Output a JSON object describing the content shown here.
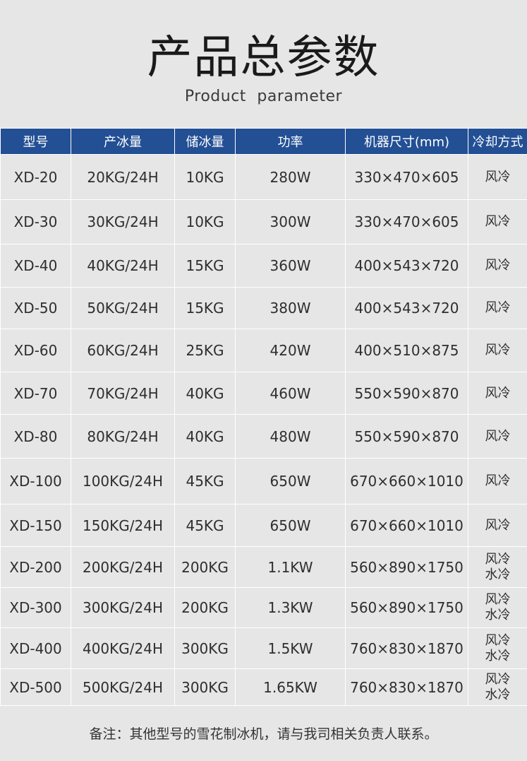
{
  "title": "产品总参数",
  "subtitle": "Product parameter",
  "headers": [
    "型号",
    "产冰量",
    "储冰量",
    "功率",
    "机器尺寸(mm)",
    "冷却方式"
  ],
  "rows": [
    {
      "model": "XD-20",
      "output": "20KG/24H",
      "storage": "10KG",
      "power": "280W",
      "size": "330×470×605",
      "cooling": [
        "风冷"
      ]
    },
    {
      "model": "XD-30",
      "output": "30KG/24H",
      "storage": "10KG",
      "power": "300W",
      "size": "330×470×605",
      "cooling": [
        "风冷"
      ]
    },
    {
      "model": "XD-40",
      "output": "40KG/24H",
      "storage": "15KG",
      "power": "360W",
      "size": "400×543×720",
      "cooling": [
        "风冷"
      ]
    },
    {
      "model": "XD-50",
      "output": "50KG/24H",
      "storage": "15KG",
      "power": "380W",
      "size": "400×543×720",
      "cooling": [
        "风冷"
      ]
    },
    {
      "model": "XD-60",
      "output": "60KG/24H",
      "storage": "25KG",
      "power": "420W",
      "size": "400×510×875",
      "cooling": [
        "风冷"
      ]
    },
    {
      "model": "XD-70",
      "output": "70KG/24H",
      "storage": "40KG",
      "power": "460W",
      "size": "550×590×870",
      "cooling": [
        "风冷"
      ]
    },
    {
      "model": "XD-80",
      "output": "80KG/24H",
      "storage": "40KG",
      "power": "480W",
      "size": "550×590×870",
      "cooling": [
        "风冷"
      ]
    },
    {
      "model": "XD-100",
      "output": "100KG/24H",
      "storage": "45KG",
      "power": "650W",
      "size": "670×660×1010",
      "cooling": [
        "风冷"
      ]
    },
    {
      "model": "XD-150",
      "output": "150KG/24H",
      "storage": "45KG",
      "power": "650W",
      "size": "670×660×1010",
      "cooling": [
        "风冷"
      ]
    },
    {
      "model": "XD-200",
      "output": "200KG/24H",
      "storage": "200KG",
      "power": "1.1KW",
      "size": "560×890×1750",
      "cooling": [
        "风冷",
        "水冷"
      ]
    },
    {
      "model": "XD-300",
      "output": "300KG/24H",
      "storage": "200KG",
      "power": "1.3KW",
      "size": "560×890×1750",
      "cooling": [
        "风冷",
        "水冷"
      ]
    },
    {
      "model": "XD-400",
      "output": "400KG/24H",
      "storage": "300KG",
      "power": "1.5KW",
      "size": "760×830×1870",
      "cooling": [
        "风冷",
        "水冷"
      ]
    },
    {
      "model": "XD-500",
      "output": "500KG/24H",
      "storage": "300KG",
      "power": "1.65KW",
      "size": "760×830×1870",
      "cooling": [
        "风冷",
        "水冷"
      ]
    }
  ],
  "note": "备注：其他型号的雪花制冰机，请与我司相关负责人联系。",
  "colors": {
    "header_bg": "#234f94",
    "page_bg": "#e6e6e6"
  }
}
